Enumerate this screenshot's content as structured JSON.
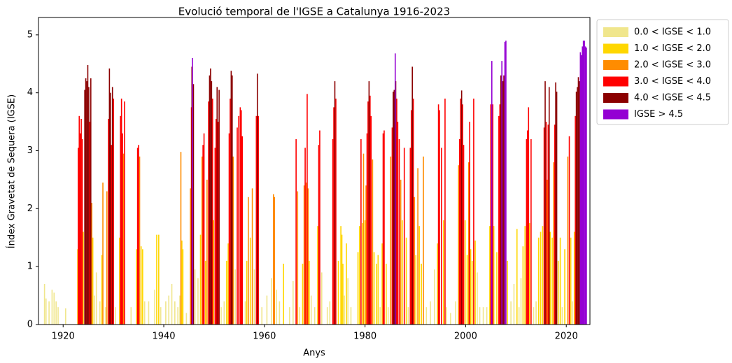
{
  "chart_data": {
    "type": "bar",
    "title": "Evolució temporal de l'IGSE a Catalunya 1916-2023",
    "xlabel": "Anys",
    "ylabel": "Índex Gravetat de Sequera (IGSE)",
    "xlim": [
      1915.1,
      2024.7
    ],
    "ylim": [
      0,
      5.3
    ],
    "xticks": [
      1920,
      1940,
      1960,
      1980,
      2000,
      2020
    ],
    "yticks": [
      0,
      1,
      2,
      3,
      4,
      5
    ],
    "legend": "outside-upper-right",
    "series": [
      {
        "name": "0.0 < IGSE < 1.0",
        "color": "#f0e68c",
        "x": [
          1916.3,
          1916.6,
          1917.2,
          1917.8,
          1918.2,
          1918.6,
          1919.0,
          1920.5,
          1926.2,
          1926.6,
          1927.3,
          1928.4,
          1930.4,
          1933.5,
          1936.2,
          1937.0,
          1938.2,
          1939.4,
          1940.4,
          1941.0,
          1941.6,
          1942.2,
          1942.8,
          1943.2,
          1944.5,
          1946.2,
          1946.8,
          1951.4,
          1952.0,
          1954.2,
          1956.2,
          1958.0,
          1959.5,
          1960.5,
          1961.4,
          1962.4,
          1963.0,
          1965.0,
          1965.7,
          1967.0,
          1969.3,
          1970.0,
          1971.4,
          1972.5,
          1973.0,
          1975.9,
          1976.6,
          1977.2,
          1983.0,
          1984.6,
          1988.6,
          1992.2,
          1993.0,
          1993.8,
          1996.2,
          1997.0,
          1998.0,
          2002.3,
          2002.8,
          2003.5,
          2004.2,
          2009.0,
          2009.6,
          2010.6,
          2011.0,
          2013.5,
          2014.0,
          2019.2,
          2021.2
        ],
        "values": [
          0.7,
          0.45,
          0.4,
          0.6,
          0.55,
          0.4,
          0.3,
          0.28,
          0.5,
          0.9,
          0.4,
          0.3,
          0.3,
          0.3,
          0.4,
          0.4,
          0.6,
          0.3,
          0.4,
          0.5,
          0.7,
          0.4,
          0.3,
          0.5,
          0.2,
          0.95,
          0.8,
          0.3,
          0.4,
          0.95,
          0.4,
          0.95,
          0.3,
          0.5,
          0.8,
          0.6,
          0.4,
          0.3,
          0.75,
          0.3,
          0.5,
          0.3,
          0.9,
          0.3,
          0.4,
          0.5,
          0.8,
          0.3,
          0.3,
          0.3,
          0.3,
          0.3,
          0.4,
          0.95,
          0.3,
          0.2,
          0.4,
          0.9,
          0.3,
          0.3,
          0.3,
          0.4,
          0.7,
          0.3,
          0.8,
          0.3,
          0.4,
          0.3,
          0.4
        ]
      },
      {
        "name": "1.0 < IGSE < 2.0",
        "color": "#ffd700",
        "x": [
          1922.9,
          1924.0,
          1925.9,
          1927.7,
          1931.2,
          1934.6,
          1935.5,
          1935.8,
          1938.6,
          1939.0,
          1943.6,
          1943.8,
          1947.3,
          1948.3,
          1949.9,
          1952.5,
          1952.8,
          1956.5,
          1957.2,
          1963.8,
          1967.6,
          1968.9,
          1970.6,
          1974.7,
          1975.2,
          1975.4,
          1975.6,
          1976.3,
          1978.6,
          1978.9,
          1979.5,
          1980.0,
          1981.8,
          1982.3,
          1982.6,
          1983.4,
          1984.2,
          1987.4,
          1988.2,
          1990.1,
          1990.8,
          1991.2,
          1994.4,
          1995.6,
          1999.9,
          2000.3,
          2001.0,
          2001.3,
          2001.9,
          2004.8,
          2005.6,
          2006.2,
          2008.3,
          2010.2,
          2011.4,
          2011.8,
          2012.7,
          2014.5,
          2014.9,
          2015.3,
          2016.8,
          2017.2,
          2018.4,
          2018.8,
          2019.7,
          2020.9,
          2021.6
        ],
        "values": [
          1.3,
          1.6,
          1.5,
          1.2,
          1.5,
          1.3,
          1.35,
          1.3,
          1.55,
          1.55,
          1.45,
          1.3,
          1.55,
          1.1,
          1.8,
          1.1,
          1.4,
          1.1,
          1.5,
          1.05,
          1.05,
          1.1,
          1.7,
          1.1,
          1.7,
          1.55,
          1.05,
          1.4,
          1.25,
          1.7,
          1.75,
          1.8,
          1.25,
          1.05,
          1.2,
          1.4,
          1.05,
          1.8,
          1.5,
          1.2,
          1.7,
          1.05,
          1.4,
          1.8,
          1.8,
          1.2,
          1.3,
          1.1,
          1.45,
          1.7,
          1.7,
          1.25,
          1.1,
          1.65,
          1.35,
          1.7,
          1.75,
          1.5,
          1.6,
          1.7,
          1.6,
          1.5,
          1.1,
          1.5,
          1.3,
          1.5,
          1.6
        ]
      },
      {
        "name": "2.0 < IGSE < 3.0",
        "color": "#ff8c00",
        "x": [
          1925.7,
          1927.9,
          1928.7,
          1932.0,
          1935.2,
          1943.4,
          1945.3,
          1947.6,
          1948.6,
          1953.8,
          1956.8,
          1957.6,
          1961.8,
          1962.0,
          1966.6,
          1967.9,
          1968.3,
          1968.7,
          1979.7,
          1980.2,
          1981.5,
          1985.1,
          1987.1,
          1989.8,
          1990.5,
          1991.6,
          1998.6,
          2000.6,
          2016.2,
          2017.5,
          2020.3
        ],
        "values": [
          2.1,
          2.45,
          2.3,
          2.95,
          2.9,
          2.98,
          2.35,
          2.9,
          2.5,
          2.9,
          2.2,
          2.35,
          2.25,
          2.2,
          2.3,
          2.4,
          2.45,
          2.35,
          2.95,
          2.4,
          2.85,
          2.9,
          2.5,
          2.2,
          2.7,
          2.9,
          2.75,
          2.8,
          2.5,
          2.8,
          2.9
        ]
      },
      {
        "name": "3.0 < IGSE < 4.0",
        "color": "#ff0000",
        "x": [
          1923.0,
          1923.2,
          1923.4,
          1923.6,
          1923.8,
          1925.3,
          1929.0,
          1929.6,
          1930.0,
          1931.4,
          1931.6,
          1931.8,
          1932.2,
          1934.8,
          1935.0,
          1945.5,
          1947.8,
          1948.0,
          1948.9,
          1949.7,
          1950.2,
          1950.4,
          1950.8,
          1953.0,
          1953.2,
          1954.6,
          1954.9,
          1955.2,
          1955.4,
          1955.6,
          1958.4,
          1958.8,
          1966.3,
          1968.1,
          1968.5,
          1970.8,
          1971.0,
          1973.6,
          1973.8,
          1974.2,
          1979.2,
          1980.4,
          1980.6,
          1981.0,
          1981.2,
          1983.6,
          1983.8,
          1985.4,
          1986.3,
          1986.5,
          1986.8,
          1987.8,
          1989.0,
          1989.2,
          1989.6,
          1994.6,
          1994.8,
          1995.2,
          1995.9,
          1998.8,
          1999.0,
          1999.4,
          1999.6,
          2000.8,
          2001.6,
          2005.0,
          2005.4,
          2006.6,
          2006.8,
          2012.1,
          2012.3,
          2012.5,
          2013.0,
          2015.6,
          2016.0,
          2016.4,
          2017.7,
          2020.6,
          2021.8
        ],
        "values": [
          3.05,
          3.6,
          3.3,
          3.55,
          3.2,
          3.5,
          3.55,
          3.1,
          3.9,
          3.6,
          3.9,
          3.3,
          3.85,
          3.05,
          3.1,
          3.75,
          3.1,
          3.3,
          3.85,
          3.9,
          3.05,
          3.55,
          3.5,
          3.3,
          3.9,
          3.4,
          3.6,
          3.75,
          3.7,
          3.25,
          3.6,
          3.6,
          3.2,
          3.05,
          3.98,
          3.1,
          3.35,
          3.2,
          3.75,
          3.9,
          3.2,
          3.3,
          3.85,
          3.95,
          3.6,
          3.3,
          3.35,
          3.4,
          3.9,
          3.5,
          3.2,
          3.05,
          3.05,
          3.7,
          3.9,
          3.8,
          3.7,
          3.05,
          3.9,
          3.2,
          3.9,
          3.8,
          3.1,
          3.5,
          3.9,
          3.8,
          3.8,
          3.6,
          3.8,
          3.2,
          3.35,
          3.75,
          3.2,
          3.4,
          3.5,
          3.45,
          3.45,
          3.25,
          3.6
        ]
      },
      {
        "name": "4.0 < IGSE < 4.5",
        "color": "#8b0000",
        "x": [
          1924.3,
          1924.5,
          1924.7,
          1924.9,
          1925.1,
          1925.5,
          1929.2,
          1929.4,
          1929.8,
          1945.6,
          1945.9,
          1949.1,
          1949.3,
          1949.5,
          1950.6,
          1951.0,
          1953.4,
          1953.6,
          1958.6,
          1974.0,
          1980.8,
          1985.6,
          1985.8,
          1986.1,
          1989.4,
          1999.2,
          2007.0,
          2007.4,
          2007.6,
          2015.8,
          2016.6,
          2017.9,
          2018.1,
          2022.0,
          2022.2,
          2022.4,
          2022.6
        ],
        "values": [
          4.05,
          4.25,
          4.2,
          4.48,
          4.1,
          4.25,
          4.42,
          4.0,
          4.1,
          4.45,
          4.15,
          4.3,
          4.42,
          4.2,
          4.1,
          4.05,
          4.38,
          4.3,
          4.33,
          4.2,
          4.2,
          4.02,
          4.05,
          4.2,
          4.45,
          4.04,
          4.3,
          4.2,
          4.3,
          4.2,
          4.1,
          4.18,
          4.02,
          4.02,
          4.1,
          4.27,
          4.2
        ]
      },
      {
        "name": "IGSE > 4.5",
        "color": "#9400d3",
        "x": [
          1945.7,
          1986.0,
          2005.2,
          2007.2,
          2007.8,
          2008.0,
          2022.8,
          2023.0,
          2023.2,
          2023.4,
          2023.6,
          2023.8,
          2024.0
        ],
        "values": [
          4.6,
          4.68,
          4.55,
          4.55,
          4.88,
          4.9,
          4.7,
          4.65,
          4.8,
          4.9,
          4.9,
          4.8,
          4.78
        ]
      }
    ]
  }
}
